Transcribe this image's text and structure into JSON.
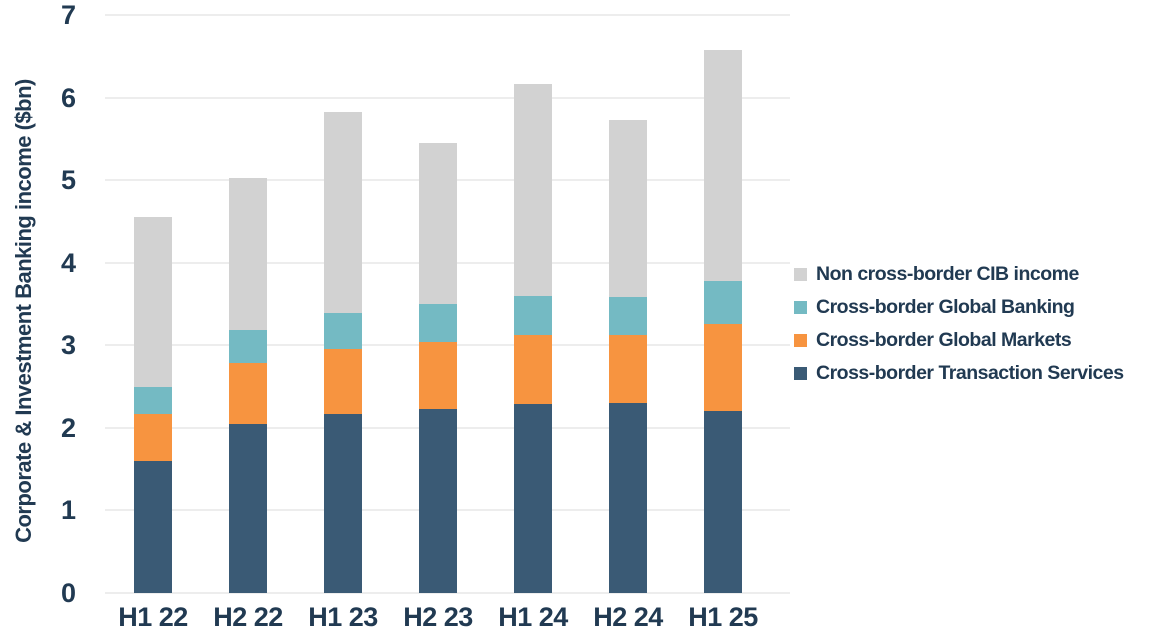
{
  "chart_data": {
    "type": "bar",
    "stacked": true,
    "title": "",
    "xlabel": "",
    "ylabel": "Corporate & Investment Banking income ($bn)",
    "ylim": [
      0,
      7
    ],
    "yticks": [
      0,
      1,
      2,
      3,
      4,
      5,
      6,
      7
    ],
    "grid": true,
    "legend_position": "right",
    "categories": [
      "H1 22",
      "H2 22",
      "H1 23",
      "H2 23",
      "H1 24",
      "H2 24",
      "H1 25"
    ],
    "series": [
      {
        "name": "Cross-border Transaction Services",
        "color": "#3a5a75",
        "values": [
          1.6,
          2.05,
          2.17,
          2.23,
          2.29,
          2.3,
          2.2
        ]
      },
      {
        "name": "Cross-border Global Markets",
        "color": "#f79440",
        "values": [
          0.57,
          0.74,
          0.79,
          0.81,
          0.84,
          0.82,
          1.06
        ]
      },
      {
        "name": "Cross-border Global Banking",
        "color": "#74bac3",
        "values": [
          0.33,
          0.4,
          0.43,
          0.46,
          0.47,
          0.47,
          0.52
        ]
      },
      {
        "name": "Non cross-border CIB income",
        "color": "#d2d2d2",
        "values": [
          2.05,
          1.84,
          2.44,
          1.95,
          2.57,
          2.14,
          2.8
        ]
      }
    ],
    "legend_order_top_to_bottom": [
      "Non cross-border CIB income",
      "Cross-border Global Banking",
      "Cross-border Global Markets",
      "Cross-border Transaction Services"
    ],
    "stack_totals": [
      4.55,
      5.03,
      5.83,
      5.45,
      6.17,
      5.73,
      6.58
    ]
  },
  "colors": {
    "text": "#213a52",
    "gridline": "#ededed",
    "background": "#ffffff"
  }
}
